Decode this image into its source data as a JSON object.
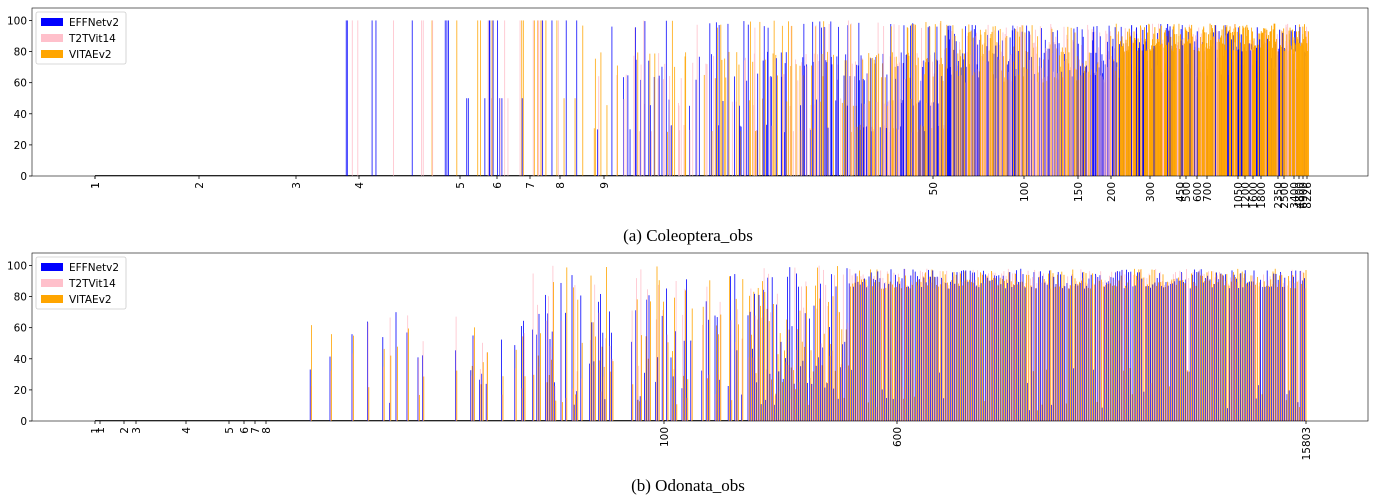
{
  "chart_data": [
    {
      "type": "bar",
      "title": "",
      "caption": "(a) Coleoptera_obs",
      "xlabel": "",
      "ylabel": "",
      "ylim": [
        0,
        100
      ],
      "yticks": [
        0,
        20,
        40,
        60,
        80,
        100
      ],
      "grid": false,
      "legend_placement": "top-left",
      "xtick_labels": [
        "1",
        "1",
        "2",
        "3",
        "4",
        "5",
        "6",
        "7",
        "8",
        "9",
        "50",
        "100",
        "150",
        "200",
        "300",
        "450",
        "500",
        "600",
        "700",
        "1050",
        "1200",
        "1600",
        "1800",
        "2350",
        "2500",
        "3400",
        "4800",
        "6900",
        "8226"
      ],
      "series": [
        {
          "name": "EFFNetv2",
          "color": "#0000ff"
        },
        {
          "name": "T2TVit14",
          "color": "#ffc0cb"
        },
        {
          "name": "VITAEv2",
          "color": "#ffa500"
        }
      ],
      "value_pattern": "per-class accuracy: mostly 0 for classes with few observations, rising toward 90-100 for classes with many observations"
    },
    {
      "type": "bar",
      "title": "",
      "caption": "(b) Odonata_obs",
      "xlabel": "",
      "ylabel": "",
      "ylim": [
        0,
        100
      ],
      "yticks": [
        0,
        20,
        40,
        60,
        80,
        100
      ],
      "grid": false,
      "legend_placement": "top-left",
      "xtick_labels": [
        "1",
        "1",
        "2",
        "3",
        "4",
        "5",
        "6",
        "7",
        "8",
        "100",
        "600",
        "15803"
      ],
      "series": [
        {
          "name": "EFFNetv2",
          "color": "#0000ff"
        },
        {
          "name": "T2TVit14",
          "color": "#ffc0cb"
        },
        {
          "name": "VITAEv2",
          "color": "#ffa500"
        }
      ],
      "value_pattern": "per-class accuracy: near 0 for rare classes, scattered 10-100 in the middle, converging near 95 for frequent classes"
    }
  ]
}
